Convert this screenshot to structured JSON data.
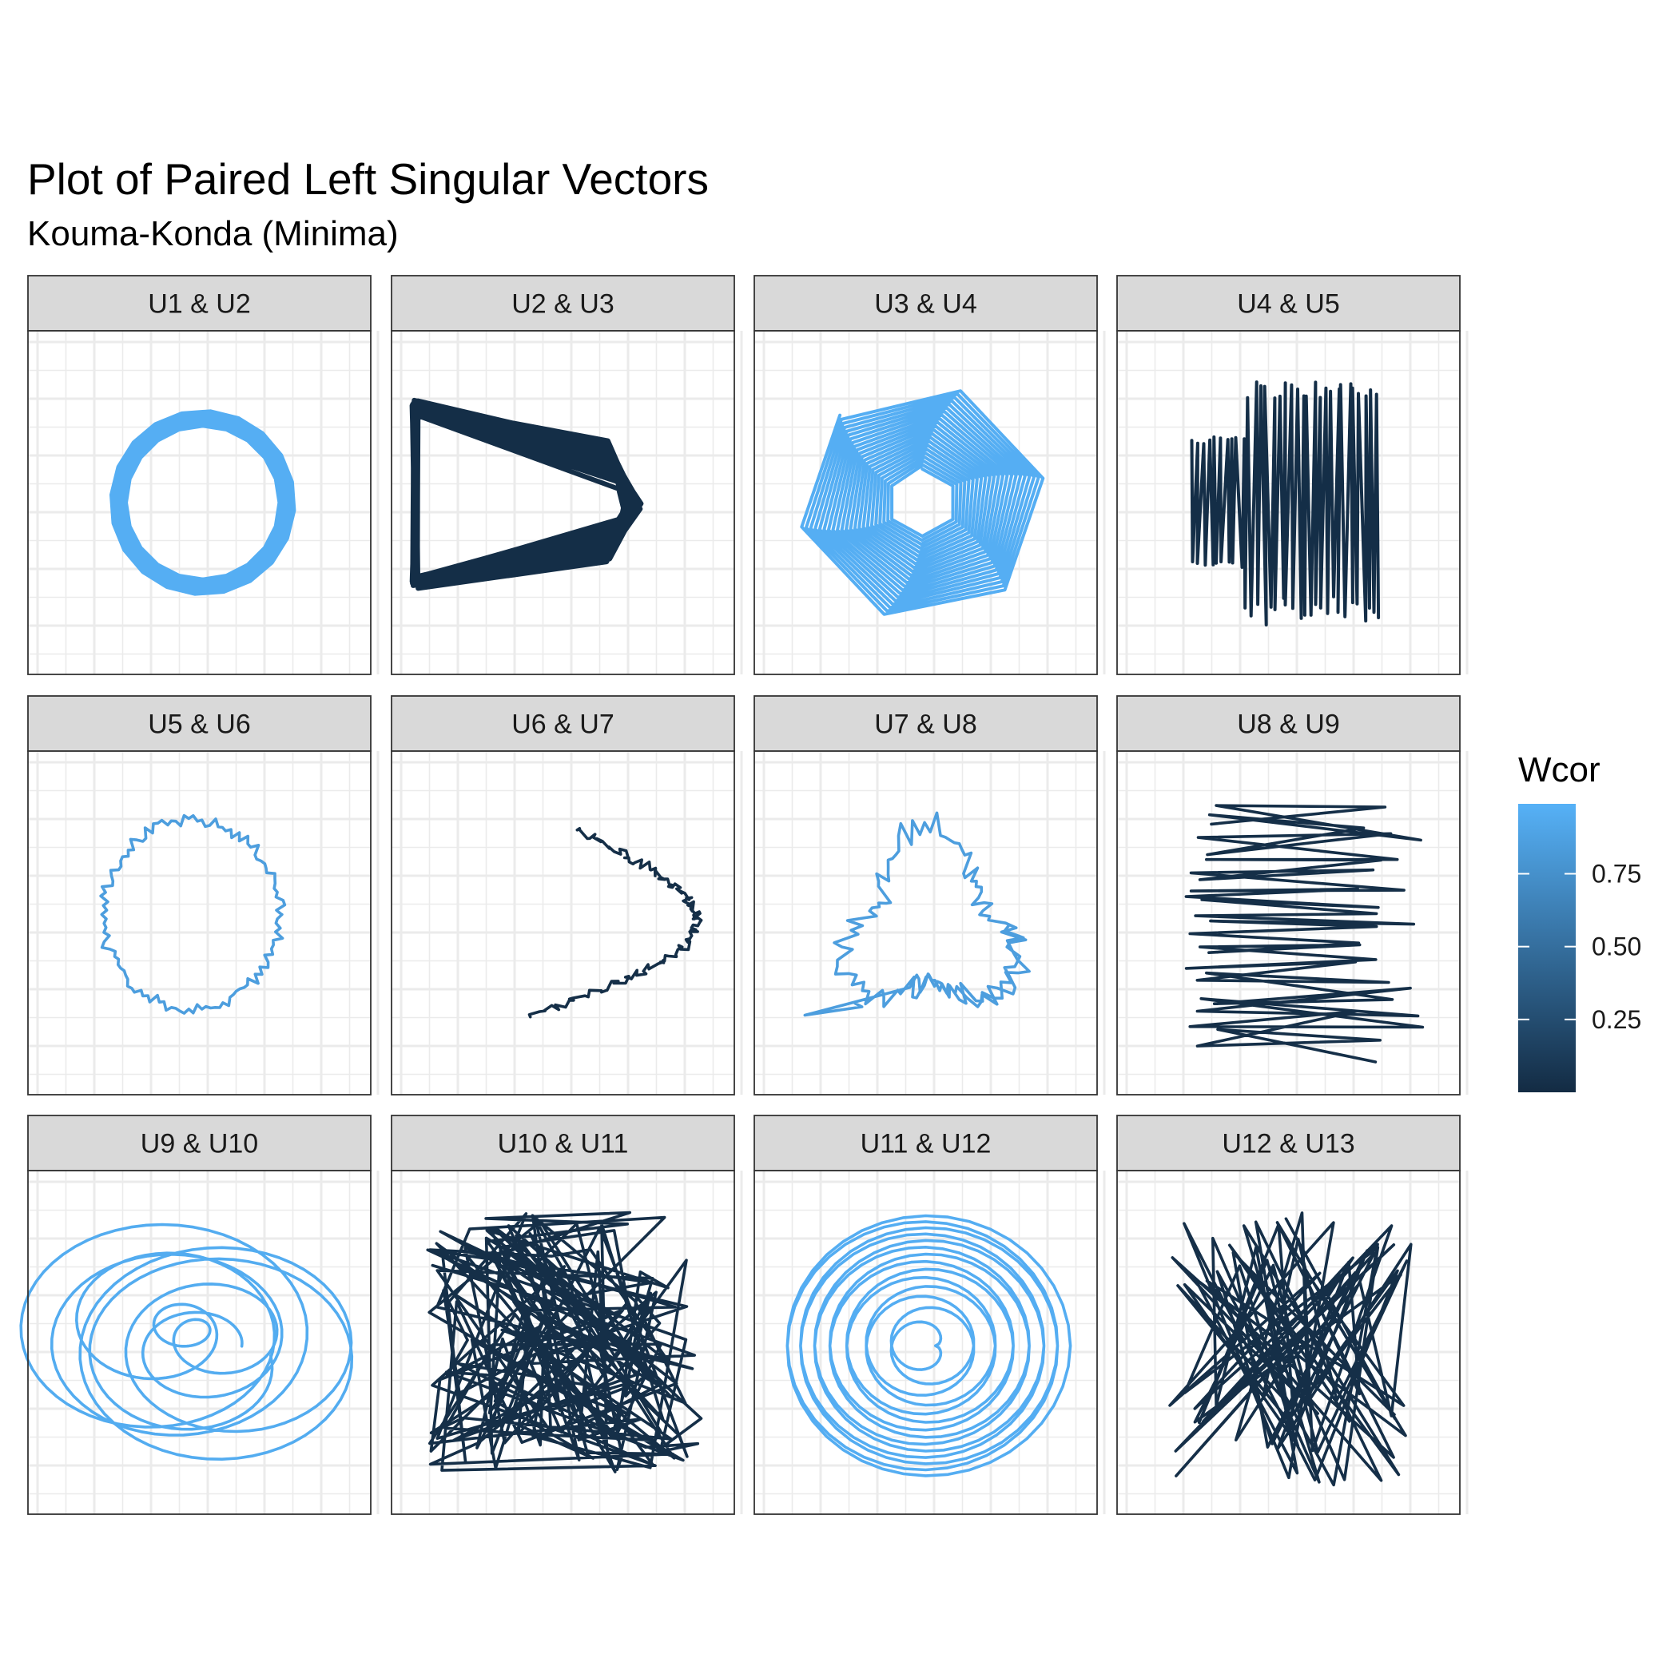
{
  "chart_data": {
    "type": "line",
    "title": "Plot of Paired Left Singular Vectors",
    "subtitle": "Kouma-Konda (Minima)",
    "facet_layout": "3 rows x 4 columns",
    "grid": true,
    "panels": [
      {
        "label": "U1  &  U2",
        "shape": "ring",
        "wcor": 0.97
      },
      {
        "label": "U2  &  U3",
        "shape": "chevron",
        "wcor": 0.02
      },
      {
        "label": "U3  &  U4",
        "shape": "hexagon-spiral",
        "wcor": 0.97
      },
      {
        "label": "U4  &  U5",
        "shape": "vertical-zigzag",
        "wcor": 0.02
      },
      {
        "label": "U5  &  U6",
        "shape": "noisy-ring",
        "wcor": 0.85
      },
      {
        "label": "U6  &  U7",
        "shape": "noisy-arc",
        "wcor": 0.03
      },
      {
        "label": "U7  &  U8",
        "shape": "noisy-blob",
        "wcor": 0.85
      },
      {
        "label": "U8  &  U9",
        "shape": "horizontal-scribble",
        "wcor": 0.03
      },
      {
        "label": "U9  &  U10",
        "shape": "nested-loops",
        "wcor": 0.95
      },
      {
        "label": "U10  &  U11",
        "shape": "scribble",
        "wcor": 0.03
      },
      {
        "label": "U11  &  U12",
        "shape": "spiral",
        "wcor": 0.96
      },
      {
        "label": "U12  &  U13",
        "shape": "vertical-scribble",
        "wcor": 0.03
      }
    ],
    "legend": {
      "title": "Wcor",
      "position": "right",
      "breaks": [
        "0.25",
        "0.50",
        "0.75"
      ],
      "break_values": [
        0.25,
        0.5,
        0.75
      ],
      "range": [
        0.0,
        0.99
      ],
      "low_color": "#132b43",
      "high_color": "#56b1f7"
    }
  }
}
